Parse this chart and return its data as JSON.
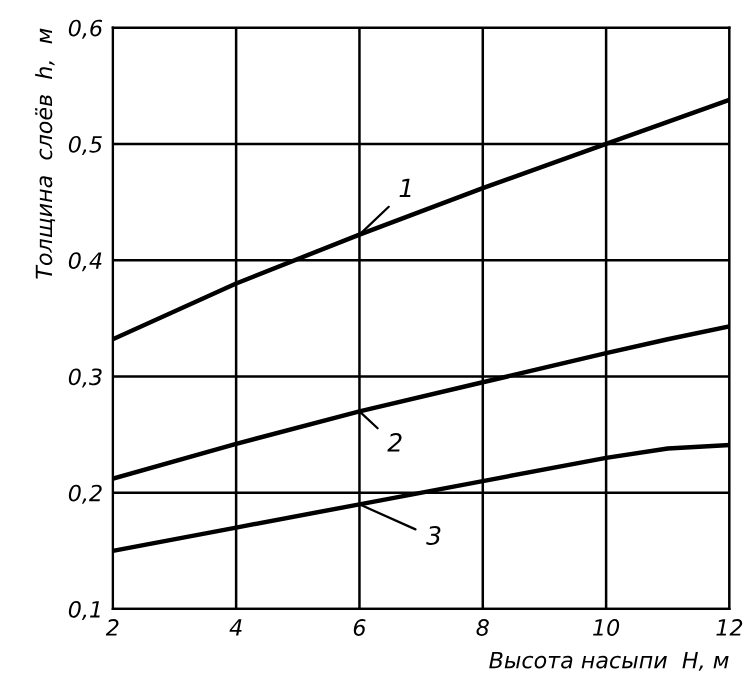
{
  "chart_data": {
    "type": "line",
    "xlabel": "Высота насыпи  H, м",
    "ylabel": "Толщина  слоёв  h,  м",
    "x": [
      2,
      4,
      6,
      8,
      10,
      11,
      12
    ],
    "series": [
      {
        "name": "1",
        "color": "#000000",
        "values": [
          0.332,
          0.38,
          0.422,
          0.462,
          0.5,
          0.519,
          0.538
        ]
      },
      {
        "name": "2",
        "color": "#000000",
        "values": [
          0.212,
          0.242,
          0.27,
          0.295,
          0.32,
          0.332,
          0.343
        ]
      },
      {
        "name": "3",
        "color": "#000000",
        "values": [
          0.15,
          0.17,
          0.19,
          0.21,
          0.23,
          0.238,
          0.241
        ]
      }
    ],
    "xlim": [
      2,
      12
    ],
    "ylim": [
      0.1,
      0.6
    ],
    "xticks": [
      2,
      4,
      6,
      8,
      10,
      12
    ],
    "yticks": [
      {
        "value": 0.1,
        "label": "0,1"
      },
      {
        "value": 0.2,
        "label": "0,2"
      },
      {
        "value": 0.3,
        "label": "0,3"
      },
      {
        "value": 0.4,
        "label": "0,4"
      },
      {
        "value": 0.5,
        "label": "0,5"
      },
      {
        "value": 0.6,
        "label": "0,6"
      }
    ],
    "grid": true,
    "marker": "none",
    "line_style": "solid"
  }
}
